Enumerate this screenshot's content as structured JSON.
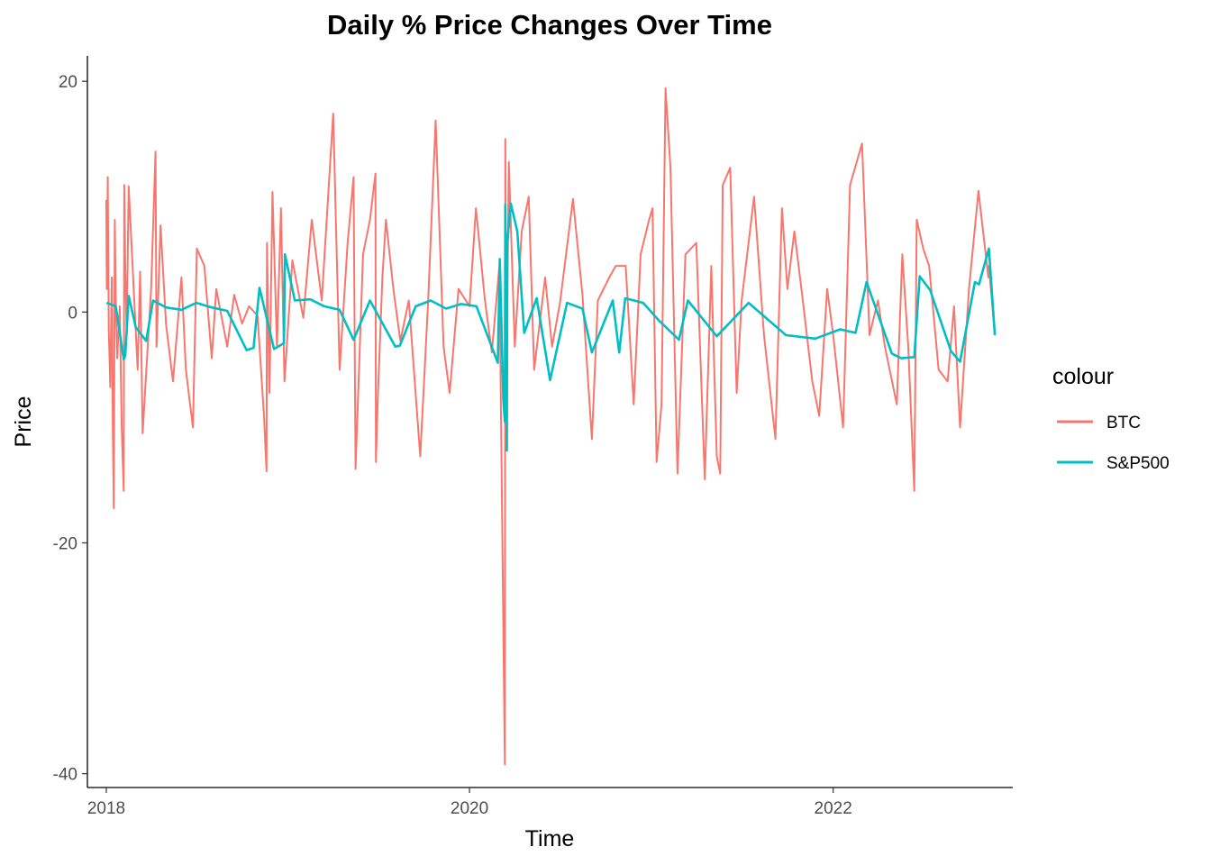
{
  "chart_data": {
    "type": "line",
    "title": "Daily % Price Changes Over Time",
    "xlabel": "Time",
    "ylabel": "Price",
    "x_tick_labels": [
      "2018",
      "2020",
      "2022"
    ],
    "x_tick_years": [
      2018,
      2020,
      2022
    ],
    "y_ticks": [
      20,
      0,
      -20,
      -40
    ],
    "y_tick_labels": [
      "20",
      "0",
      "-20",
      "-40"
    ],
    "xlim": [
      "2017-11-24",
      "2022-12-28"
    ],
    "ylim": [
      -41.2,
      22.2
    ],
    "grid": false,
    "legend": {
      "title": "colour",
      "position": "right"
    },
    "series": [
      {
        "name": "BTC",
        "color": "#F8766D",
        "x": [
          "2018-01-01",
          "2018-01-02",
          "2018-01-04",
          "2018-01-06",
          "2018-01-09",
          "2018-01-12",
          "2018-01-14",
          "2018-01-16",
          "2018-01-18",
          "2018-01-20",
          "2018-01-23",
          "2018-01-28",
          "2018-02-01",
          "2018-02-05",
          "2018-02-06",
          "2018-02-08",
          "2018-02-11",
          "2018-02-15",
          "2018-03-05",
          "2018-03-10",
          "2018-03-15",
          "2018-04-01",
          "2018-04-10",
          "2018-04-12",
          "2018-04-20",
          "2018-05-01",
          "2018-05-15",
          "2018-06-01",
          "2018-06-10",
          "2018-06-24",
          "2018-07-02",
          "2018-07-17",
          "2018-08-01",
          "2018-08-10",
          "2018-09-01",
          "2018-09-15",
          "2018-10-01",
          "2018-10-15",
          "2018-11-01",
          "2018-11-14",
          "2018-11-19",
          "2018-11-20",
          "2018-11-25",
          "2018-12-01",
          "2018-12-10",
          "2018-12-18",
          "2018-12-25",
          "2019-01-10",
          "2019-02-01",
          "2019-02-18",
          "2019-03-10",
          "2019-04-02",
          "2019-04-15",
          "2019-05-01",
          "2019-05-13",
          "2019-05-17",
          "2019-06-01",
          "2019-06-15",
          "2019-06-26",
          "2019-06-27",
          "2019-07-01",
          "2019-07-10",
          "2019-07-17",
          "2019-08-01",
          "2019-08-15",
          "2019-09-01",
          "2019-09-24",
          "2019-10-10",
          "2019-10-25",
          "2019-11-10",
          "2019-11-22",
          "2019-12-10",
          "2020-01-01",
          "2020-01-14",
          "2020-02-01",
          "2020-02-15",
          "2020-03-01",
          "2020-03-12",
          "2020-03-13",
          "2020-03-15",
          "2020-03-20",
          "2020-04-01",
          "2020-04-15",
          "2020-04-29",
          "2020-05-10",
          "2020-06-01",
          "2020-06-15",
          "2020-07-01",
          "2020-07-27",
          "2020-08-15",
          "2020-09-03",
          "2020-09-15",
          "2020-10-08",
          "2020-10-21",
          "2020-11-10",
          "2020-11-26",
          "2020-12-10",
          "2020-12-27",
          "2021-01-03",
          "2021-01-11",
          "2021-01-21",
          "2021-01-29",
          "2021-02-08",
          "2021-02-22",
          "2021-03-10",
          "2021-04-01",
          "2021-04-18",
          "2021-05-01",
          "2021-05-12",
          "2021-05-19",
          "2021-05-24",
          "2021-06-08",
          "2021-06-21",
          "2021-07-01",
          "2021-07-26",
          "2021-08-15",
          "2021-09-07",
          "2021-09-20",
          "2021-10-01",
          "2021-10-15",
          "2021-11-01",
          "2021-11-20",
          "2021-12-04",
          "2021-12-20",
          "2022-01-01",
          "2022-01-21",
          "2022-02-04",
          "2022-02-28",
          "2022-03-15",
          "2022-04-01",
          "2022-04-15",
          "2022-05-09",
          "2022-05-20",
          "2022-06-01",
          "2022-06-13",
          "2022-06-18",
          "2022-07-01",
          "2022-07-13",
          "2022-08-01",
          "2022-08-19",
          "2022-09-01",
          "2022-09-13",
          "2022-10-01",
          "2022-10-20",
          "2022-11-09",
          "2022-11-10",
          "2022-11-22"
        ],
        "values": [
          9.7,
          2.0,
          11.7,
          -1.5,
          -6.5,
          3.0,
          -10.0,
          -17.0,
          8.0,
          1.0,
          -4.0,
          0.5,
          -10.0,
          -15.5,
          11.0,
          4.0,
          -2.0,
          10.9,
          -5.0,
          3.5,
          -10.5,
          2.0,
          13.9,
          -3.0,
          7.5,
          -1.0,
          -6.0,
          3.0,
          -5.0,
          -10.0,
          5.5,
          4.0,
          -4.0,
          2.0,
          -3.0,
          1.5,
          -1.0,
          0.5,
          -0.3,
          -9.0,
          -13.8,
          6.0,
          -7.0,
          10.4,
          -3.0,
          9.0,
          -6.0,
          4.5,
          -0.5,
          8.0,
          1.0,
          17.2,
          -5.0,
          6.0,
          11.7,
          -13.6,
          5.0,
          8.0,
          12.0,
          -13.0,
          -7.0,
          3.0,
          8.0,
          2.0,
          -2.5,
          1.0,
          -12.5,
          1.0,
          16.6,
          -3.0,
          -7.0,
          2.0,
          0.5,
          9.0,
          1.0,
          -3.5,
          4.0,
          -39.2,
          15.0,
          -7.0,
          13.0,
          -3.0,
          7.0,
          10.0,
          -5.0,
          3.0,
          -3.0,
          0.8,
          9.8,
          1.5,
          -11.0,
          1.0,
          3.0,
          4.0,
          4.0,
          -8.0,
          5.0,
          8.0,
          9.0,
          -13.0,
          -8.0,
          19.4,
          12.5,
          -14.0,
          5.0,
          6.0,
          -14.5,
          4.0,
          -12.5,
          -14.0,
          11.0,
          12.5,
          -7.0,
          1.0,
          10.0,
          -2.0,
          -11.0,
          9.0,
          2.0,
          7.0,
          1.0,
          -6.0,
          -9.0,
          2.0,
          -2.0,
          -10.0,
          11.0,
          14.6,
          -2.0,
          1.0,
          -3.0,
          -8.0,
          5.0,
          -3.0,
          -15.5,
          8.0,
          5.5,
          4.0,
          -5.0,
          -6.0,
          0.5,
          -10.0,
          2.0,
          10.5,
          3.0,
          4.0,
          -2.0
        ]
      },
      {
        "name": "S&P500",
        "color": "#00BFC4",
        "x": [
          "2018-01-02",
          "2018-01-20",
          "2018-02-05",
          "2018-02-08",
          "2018-02-15",
          "2018-03-01",
          "2018-03-22",
          "2018-04-05",
          "2018-05-01",
          "2018-06-01",
          "2018-07-01",
          "2018-08-01",
          "2018-09-01",
          "2018-10-10",
          "2018-10-24",
          "2018-11-05",
          "2018-12-04",
          "2018-12-24",
          "2018-12-26",
          "2019-01-15",
          "2019-02-15",
          "2019-03-15",
          "2019-04-15",
          "2019-05-13",
          "2019-06-15",
          "2019-08-05",
          "2019-08-14",
          "2019-09-15",
          "2019-10-15",
          "2019-11-15",
          "2019-12-15",
          "2020-01-15",
          "2020-02-27",
          "2020-03-02",
          "2020-03-09",
          "2020-03-12",
          "2020-03-13",
          "2020-03-16",
          "2020-03-17",
          "2020-03-24",
          "2020-04-06",
          "2020-04-20",
          "2020-05-15",
          "2020-06-11",
          "2020-07-15",
          "2020-08-15",
          "2020-09-03",
          "2020-10-15",
          "2020-10-28",
          "2020-11-09",
          "2020-12-15",
          "2021-01-15",
          "2021-02-25",
          "2021-03-15",
          "2021-05-12",
          "2021-07-15",
          "2021-09-28",
          "2021-11-26",
          "2022-01-15",
          "2022-02-15",
          "2022-03-09",
          "2022-04-29",
          "2022-05-18",
          "2022-06-13",
          "2022-06-24",
          "2022-07-15",
          "2022-08-26",
          "2022-09-13",
          "2022-10-13",
          "2022-10-21",
          "2022-11-10",
          "2022-11-22"
        ],
        "values": [
          0.8,
          0.5,
          -4.1,
          -3.8,
          1.4,
          -1.3,
          -2.5,
          1.0,
          0.4,
          0.2,
          0.8,
          0.4,
          0.1,
          -3.3,
          -3.1,
          2.1,
          -3.2,
          -2.7,
          5.0,
          1.0,
          1.1,
          0.5,
          0.2,
          -2.4,
          1.0,
          -3.0,
          -2.9,
          0.5,
          1.0,
          0.3,
          0.7,
          0.5,
          -4.4,
          4.6,
          -7.6,
          -9.5,
          9.3,
          -12.0,
          6.0,
          9.4,
          7.0,
          -1.8,
          1.2,
          -5.9,
          0.8,
          0.3,
          -3.5,
          1.0,
          -3.5,
          1.2,
          0.8,
          -0.7,
          -2.4,
          1.0,
          -2.1,
          0.8,
          -2.0,
          -2.3,
          -1.5,
          -1.8,
          2.6,
          -3.6,
          -4.0,
          -3.9,
          3.1,
          1.9,
          -3.4,
          -4.3,
          2.6,
          2.4,
          5.5,
          -2.0
        ]
      }
    ]
  }
}
